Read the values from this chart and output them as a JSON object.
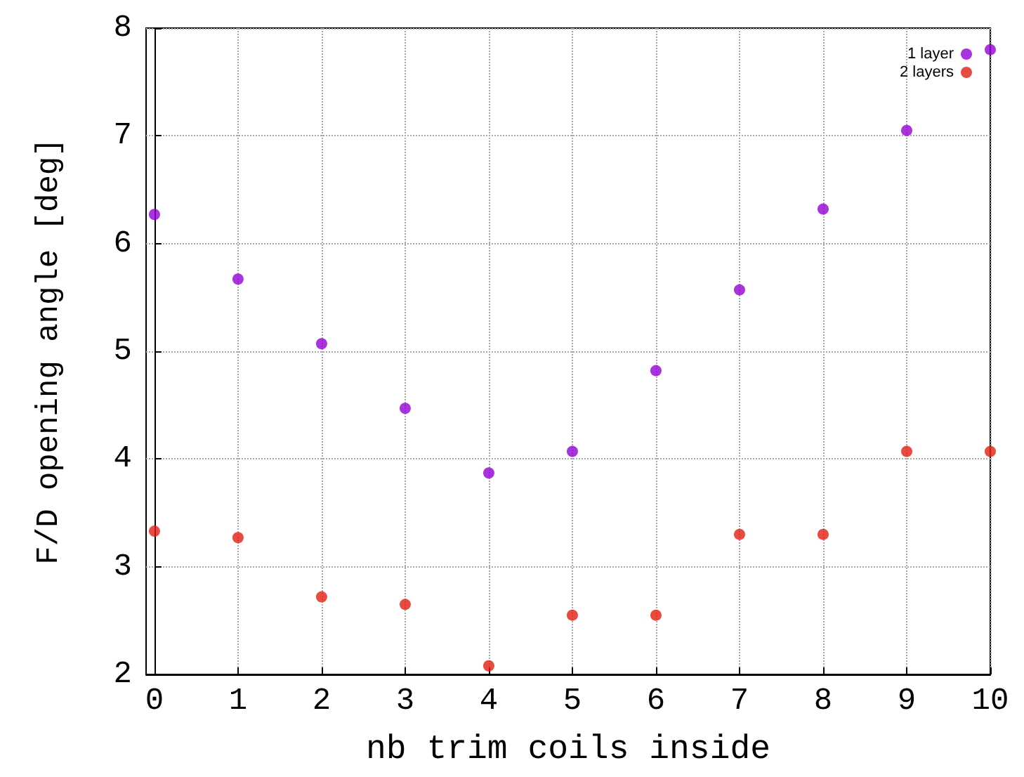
{
  "chart_data": {
    "type": "scatter",
    "xlabel": "nb trim coils inside",
    "ylabel": "F/D opening angle [deg]",
    "x": [
      0,
      1,
      2,
      3,
      4,
      5,
      6,
      7,
      8,
      9,
      10
    ],
    "series": [
      {
        "name": "1 layer",
        "color": "#9400d3",
        "values": [
          6.27,
          5.67,
          5.07,
          4.47,
          3.87,
          4.07,
          4.82,
          5.57,
          6.32,
          7.05,
          7.8
        ]
      },
      {
        "name": "2 layers",
        "color": "#e51e10",
        "values": [
          3.33,
          3.27,
          2.72,
          2.65,
          2.08,
          2.55,
          2.55,
          3.3,
          3.3,
          4.07,
          4.07
        ]
      }
    ],
    "xlim": [
      -0.1,
      10
    ],
    "xticks": [
      0,
      1,
      2,
      3,
      4,
      5,
      6,
      7,
      8,
      9,
      10
    ],
    "ylim": [
      2,
      8
    ],
    "yticks": [
      2,
      3,
      4,
      5,
      6,
      7,
      8
    ],
    "grid": true,
    "legend": "top right",
    "marker": "circle"
  }
}
